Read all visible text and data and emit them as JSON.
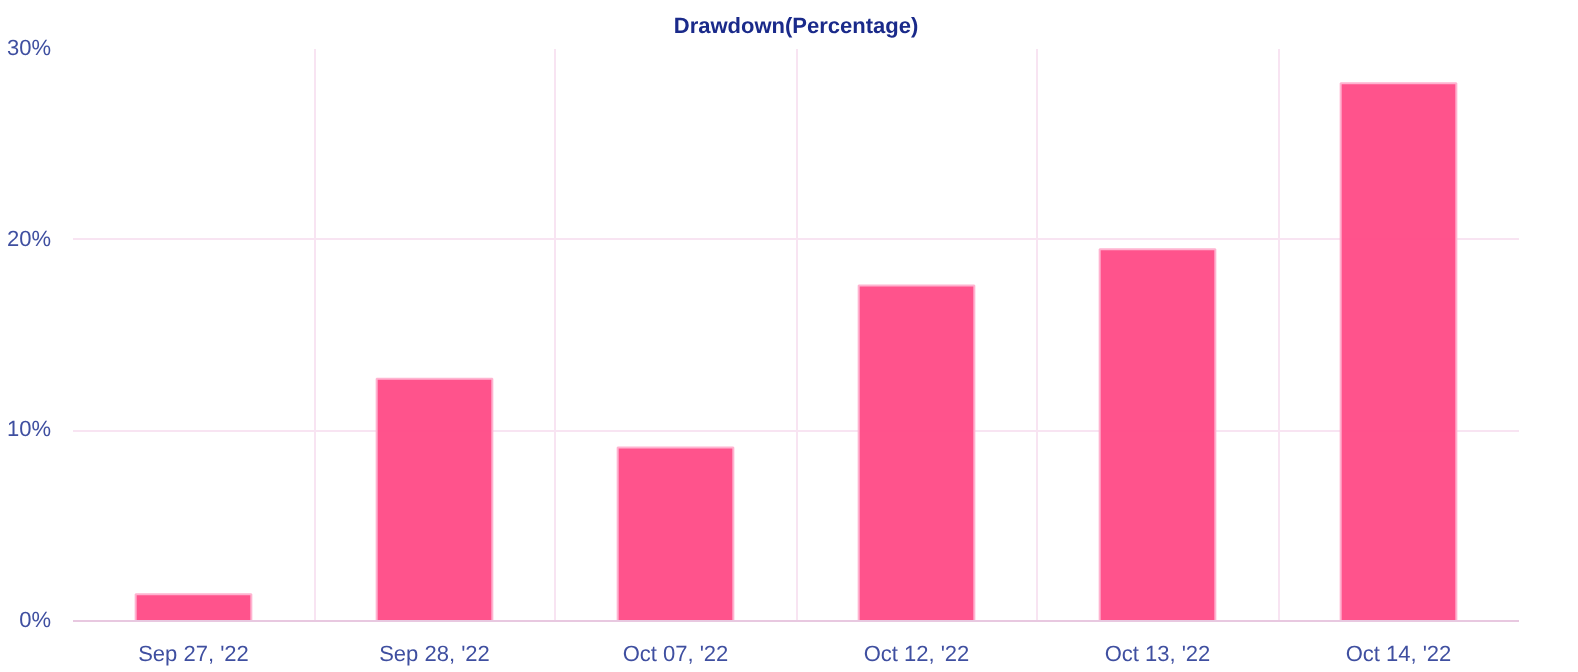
{
  "chart_data": {
    "type": "bar",
    "title": "Drawdown(Percentage)",
    "categories": [
      "Sep 27, '22",
      "Sep 28, '22",
      "Oct 07, '22",
      "Oct 12, '22",
      "Oct 13, '22",
      "Oct 14, '22"
    ],
    "values": [
      1.4,
      12.7,
      9.1,
      17.6,
      19.5,
      28.2
    ],
    "color": "#ff4a86",
    "ylim": [
      0,
      30
    ],
    "yticks": [
      {
        "value": 0,
        "label": "0%"
      },
      {
        "value": 10,
        "label": "10%"
      },
      {
        "value": 20,
        "label": "20%"
      },
      {
        "value": 30,
        "label": "30%"
      }
    ],
    "grid": true
  }
}
